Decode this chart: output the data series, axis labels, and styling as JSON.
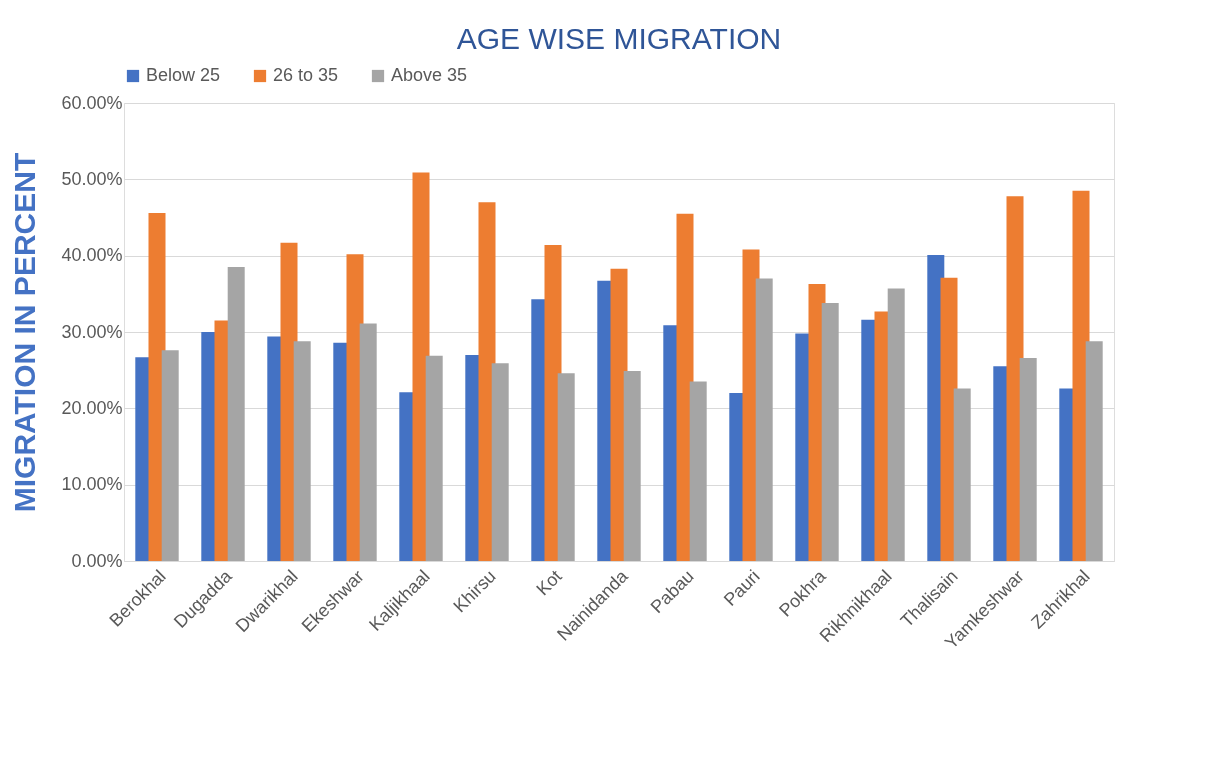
{
  "chart_data": {
    "type": "bar",
    "title": "AGE WISE MIGRATION",
    "ylabel": "MIGRATION IN PERCENT",
    "categories": [
      "Berokhal",
      "Dugadda",
      "Dwarikhal",
      "Ekeshwar",
      "Kaljikhaal",
      "Khirsu",
      "Kot",
      "Nainidanda",
      "Pabau",
      "Pauri",
      "Pokhra",
      "Rikhnikhaal",
      "Thalisain",
      "Yamkeshwar",
      "Zahrikhal"
    ],
    "series": [
      {
        "name": "Below 25",
        "color": "#4472c4",
        "values": [
          26.7,
          30.0,
          29.4,
          28.6,
          22.1,
          27.0,
          34.3,
          36.7,
          30.9,
          22.0,
          29.8,
          31.6,
          40.1,
          25.5,
          22.6
        ]
      },
      {
        "name": "26 to 35",
        "color": "#ed7d31",
        "values": [
          45.6,
          31.5,
          41.7,
          40.2,
          50.9,
          47.0,
          41.4,
          38.3,
          45.5,
          40.8,
          36.3,
          32.7,
          37.1,
          47.8,
          48.5
        ]
      },
      {
        "name": "Above 35",
        "color": "#a5a5a5",
        "values": [
          27.6,
          38.5,
          28.8,
          31.1,
          26.9,
          25.9,
          24.6,
          24.9,
          23.5,
          37.0,
          33.8,
          35.7,
          22.6,
          26.6,
          28.8
        ]
      }
    ],
    "ylim": [
      0,
      60
    ],
    "yticks": [
      {
        "value": 0,
        "label": "0.00%"
      },
      {
        "value": 10,
        "label": "10.00%"
      },
      {
        "value": 20,
        "label": "20.00%"
      },
      {
        "value": 30,
        "label": "30.00%"
      },
      {
        "value": 40,
        "label": "40.00%"
      },
      {
        "value": 50,
        "label": "50.00%"
      },
      {
        "value": 60,
        "label": "60.00%"
      }
    ],
    "grid": "y",
    "legend": "top"
  }
}
